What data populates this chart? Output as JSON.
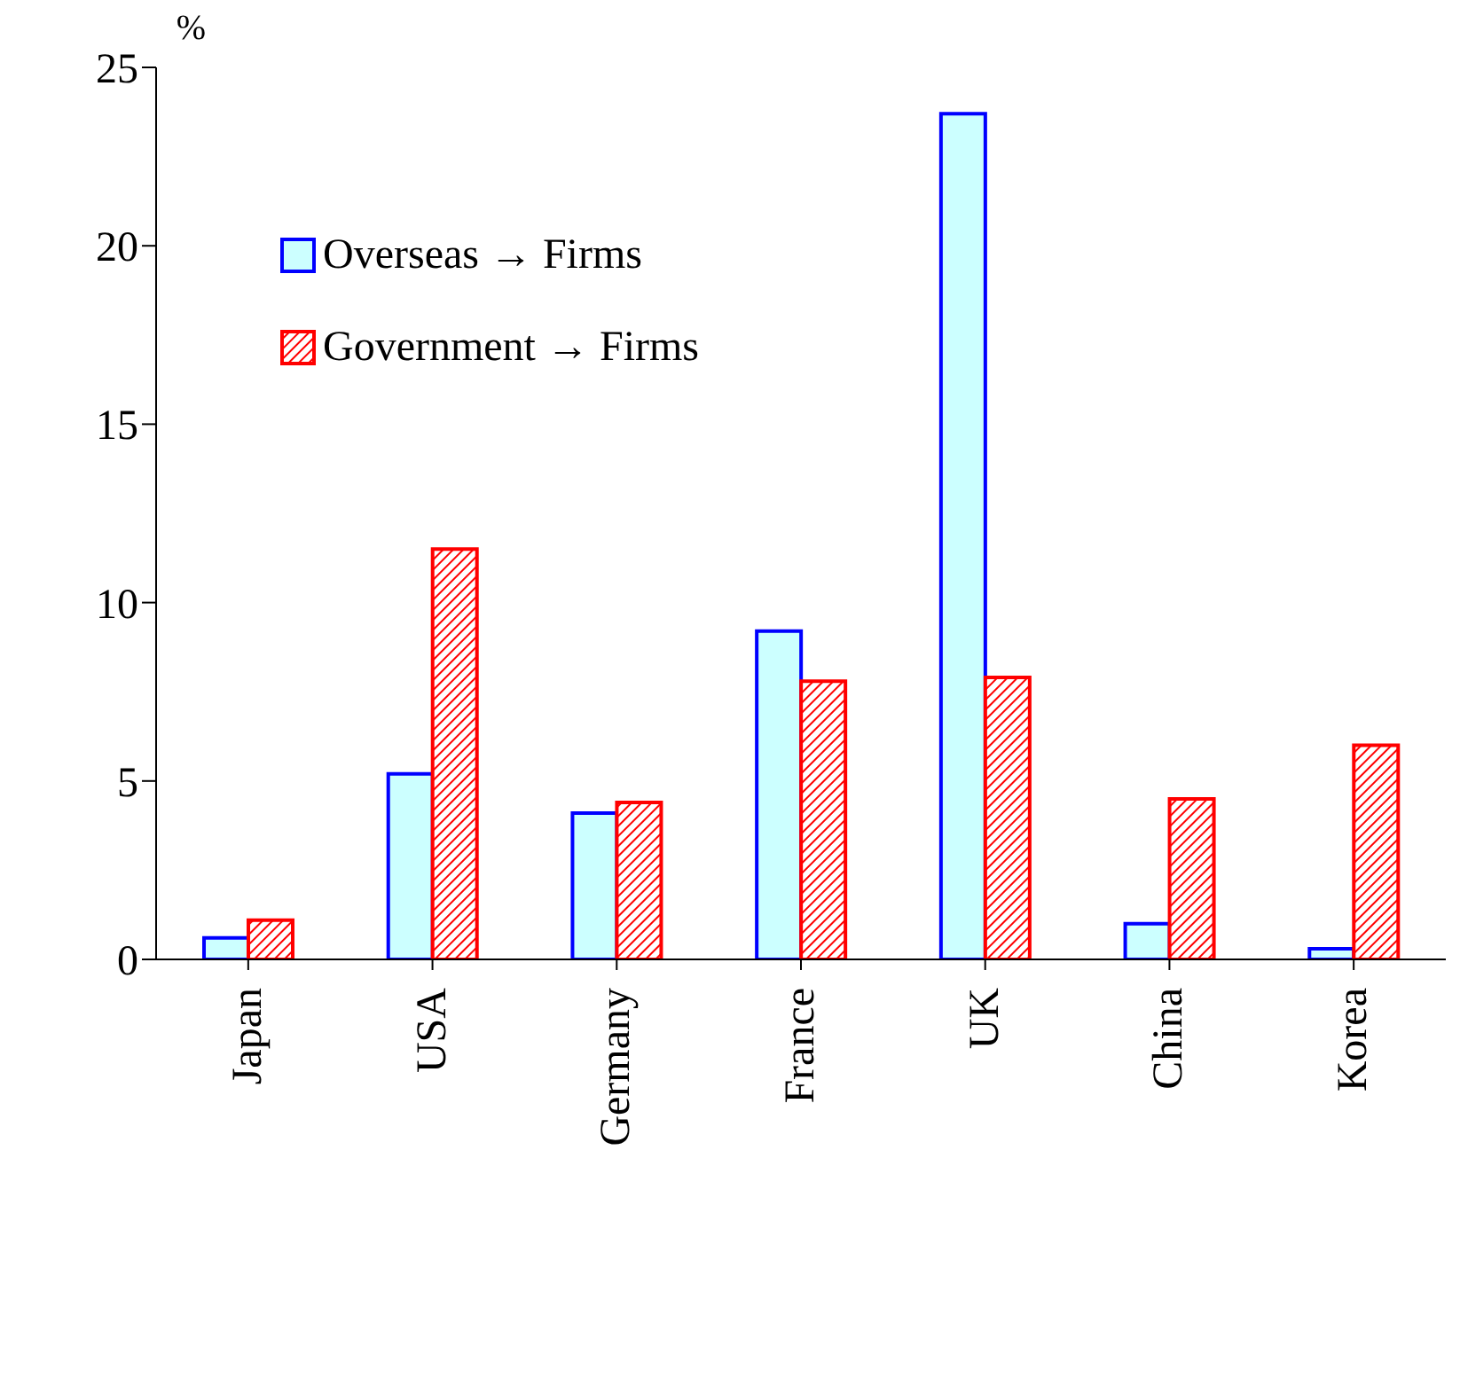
{
  "chart_data": {
    "type": "bar",
    "ylabel": "%",
    "categories": [
      "Japan",
      "USA",
      "Germany",
      "France",
      "UK",
      "China",
      "Korea"
    ],
    "series": [
      {
        "name": "Overseas → Firms",
        "color": "#ccffff",
        "values": [
          0.6,
          5.2,
          4.1,
          9.2,
          23.7,
          1.0,
          0.3
        ]
      },
      {
        "name": "Government → Firms",
        "color": "#ff0000",
        "values": [
          1.1,
          11.5,
          4.4,
          7.8,
          7.9,
          4.5,
          6.0
        ]
      }
    ],
    "ylim": [
      0,
      25
    ],
    "yticks": [
      0,
      5,
      10,
      15,
      20,
      25
    ],
    "grid": false,
    "legend": "top left"
  }
}
